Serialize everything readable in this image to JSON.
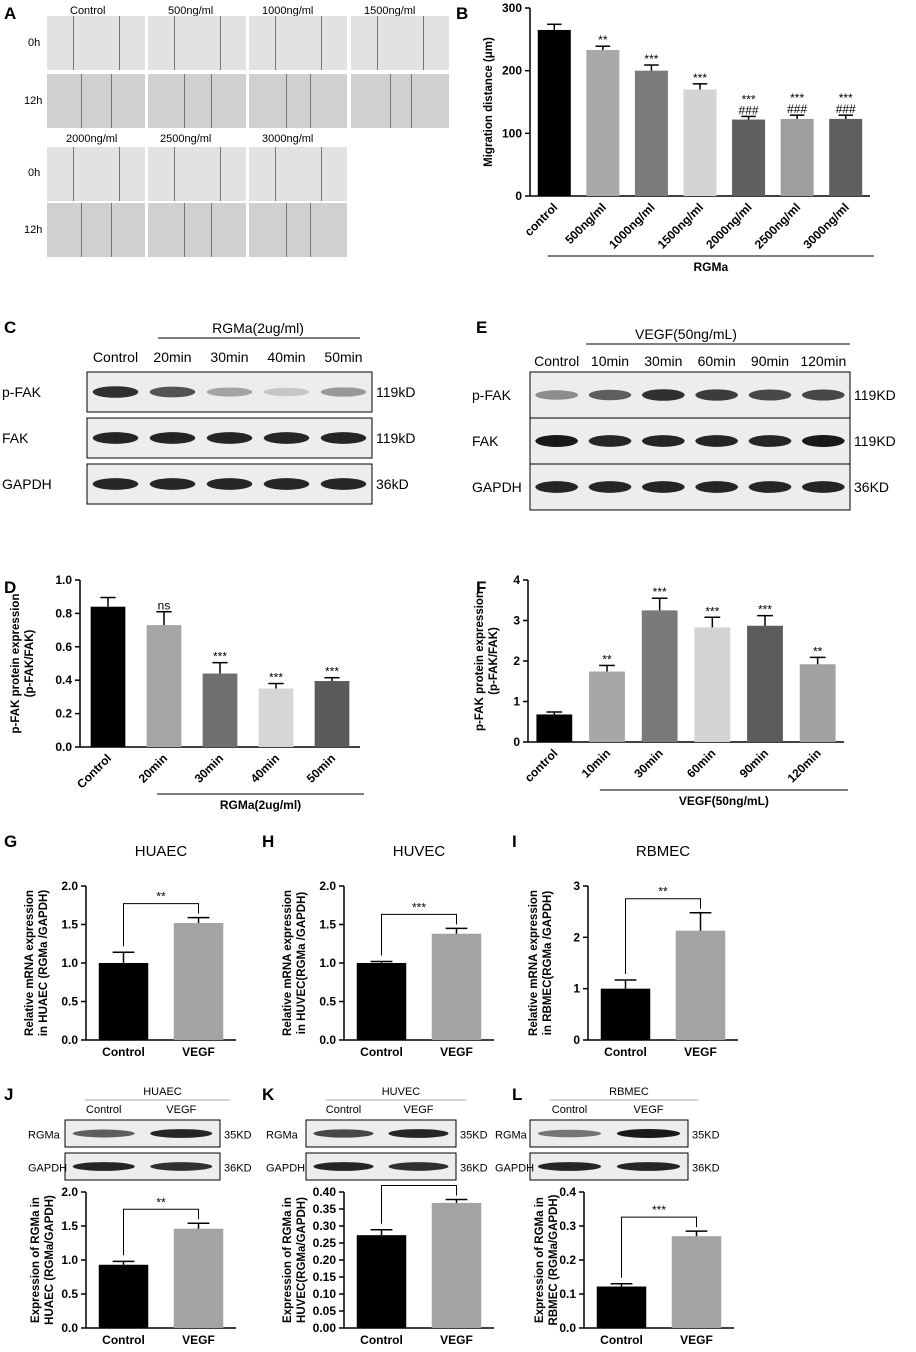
{
  "panel_letters": [
    "A",
    "B",
    "C",
    "D",
    "E",
    "F",
    "G",
    "H",
    "I",
    "J",
    "K",
    "L"
  ],
  "panel_a": {
    "row1_headers": [
      "Control",
      "500ng/ml",
      "1000ng/ml",
      "1500ng/ml"
    ],
    "row2_headers": [
      "2000ng/ml",
      "2500ng/ml",
      "3000ng/ml"
    ],
    "time_labels": [
      "0h",
      "12h"
    ]
  },
  "blot_c": {
    "group_label": "RGMa(2ug/ml)",
    "lanes": [
      "Control",
      "20min",
      "30min",
      "40min",
      "50min"
    ],
    "rows": [
      {
        "name": "p-FAK",
        "kd": "119kD",
        "intensity": [
          0.9,
          0.75,
          0.4,
          0.25,
          0.45
        ]
      },
      {
        "name": "FAK",
        "kd": "119kD",
        "intensity": [
          0.95,
          0.95,
          0.95,
          0.95,
          0.95
        ]
      },
      {
        "name": "GAPDH",
        "kd": "36kD",
        "intensity": [
          0.95,
          0.95,
          0.95,
          0.95,
          0.95
        ]
      }
    ]
  },
  "blot_e": {
    "group_label": "VEGF(50ng/mL)",
    "lanes": [
      "Control",
      "10min",
      "30min",
      "60min",
      "90min",
      "120min"
    ],
    "rows": [
      {
        "name": "p-FAK",
        "kd": "119KD",
        "intensity": [
          0.5,
          0.7,
          0.9,
          0.85,
          0.8,
          0.8
        ]
      },
      {
        "name": "FAK",
        "kd": "119KD",
        "intensity": [
          1,
          0.95,
          0.95,
          0.95,
          0.95,
          1
        ]
      },
      {
        "name": "GAPDH",
        "kd": "36KD",
        "intensity": [
          0.95,
          0.95,
          0.95,
          0.95,
          0.95,
          0.95
        ]
      }
    ]
  },
  "blot_j": {
    "title": "HUAEC",
    "lanes": [
      "Control",
      "VEGF"
    ],
    "rows": [
      {
        "name": "RGMa",
        "kd": "35KD",
        "intensity": [
          0.7,
          0.95
        ]
      },
      {
        "name": "GAPDH",
        "kd": "36KD",
        "intensity": [
          0.95,
          0.9
        ]
      }
    ]
  },
  "blot_k": {
    "title": "HUVEC",
    "lanes": [
      "Control",
      "VEGF"
    ],
    "rows": [
      {
        "name": "RGMa",
        "kd": "35KD",
        "intensity": [
          0.8,
          0.95
        ]
      },
      {
        "name": "GAPDH",
        "kd": "36KD",
        "intensity": [
          0.95,
          0.9
        ]
      }
    ]
  },
  "blot_l": {
    "title": "RBMEC",
    "lanes": [
      "Control",
      "VEGF"
    ],
    "rows": [
      {
        "name": "RGMa",
        "kd": "35KD",
        "intensity": [
          0.6,
          1
        ]
      },
      {
        "name": "GAPDH",
        "kd": "36KD",
        "intensity": [
          0.95,
          0.95
        ]
      }
    ]
  },
  "chart_data": [
    {
      "id": "B",
      "type": "bar",
      "categories": [
        "control",
        "500ng/ml",
        "1000ng/ml",
        "1500ng/ml",
        "2000ng/ml",
        "2500ng/ml",
        "3000ng/ml"
      ],
      "values": [
        265,
        233,
        200,
        170,
        122,
        123,
        123
      ],
      "errors": [
        9,
        6,
        9,
        9,
        5,
        6,
        6
      ],
      "colors": [
        "#000000",
        "#a9a9a9",
        "#7b7b7b",
        "#d4d4d4",
        "#5f5f5f",
        "#9e9e9e",
        "#5e5e5e"
      ],
      "annotations": [
        "",
        "**",
        "***",
        "***",
        "***\n###",
        "***\n###",
        "***\n###"
      ],
      "ylabel": "Migration distance (μm)",
      "ylim": [
        0,
        300
      ],
      "yticks": [
        0,
        100,
        200,
        300
      ],
      "group_label": "RGMa"
    },
    {
      "id": "D",
      "type": "bar",
      "categories": [
        "Control",
        "20min",
        "30min",
        "40min",
        "50min"
      ],
      "values": [
        0.84,
        0.73,
        0.44,
        0.35,
        0.395
      ],
      "errors": [
        0.055,
        0.08,
        0.065,
        0.03,
        0.02
      ],
      "colors": [
        "#000000",
        "#a6a6a6",
        "#6f6f6f",
        "#d6d6d6",
        "#5a5a5a"
      ],
      "annotations": [
        "",
        "ns",
        "***",
        "***",
        "***"
      ],
      "ylabel": "p-FAK protein expression\n(p-FAK/FAK)",
      "ylim": [
        0,
        1.0
      ],
      "yticks": [
        "0.0",
        "0.2",
        "0.4",
        "0.6",
        "0.8",
        "1.0"
      ],
      "group_label": "RGMa(2ug/ml)"
    },
    {
      "id": "F",
      "type": "bar",
      "categories": [
        "control",
        "10min",
        "30min",
        "60min",
        "90min",
        "120min"
      ],
      "values": [
        0.68,
        1.74,
        3.25,
        2.83,
        2.87,
        1.92
      ],
      "errors": [
        0.06,
        0.15,
        0.3,
        0.25,
        0.25,
        0.17
      ],
      "colors": [
        "#000000",
        "#a7a7a7",
        "#7a7a7a",
        "#d4d4d4",
        "#5c5c5c",
        "#a1a1a4"
      ],
      "annotations": [
        "",
        "**",
        "***",
        "***",
        "***",
        "**"
      ],
      "ylabel": "p-FAK protein expression\n(p-FAK/FAK)",
      "ylim": [
        0,
        4
      ],
      "yticks": [
        "0",
        "1",
        "2",
        "3",
        "4"
      ],
      "group_label": "VEGF(50ng/mL)"
    },
    {
      "id": "G",
      "type": "bar",
      "title": "HUAEC",
      "categories": [
        "Control",
        "VEGF"
      ],
      "values": [
        1.0,
        1.52
      ],
      "errors": [
        0.14,
        0.07
      ],
      "colors": [
        "#000000",
        "#a3a3a3"
      ],
      "significance": "**",
      "ylabel": "Relative mRNA expression\nin HUAEC (RGMa /GAPDH)",
      "ylim": [
        0,
        2.0
      ],
      "yticks": [
        "0.0",
        "0.5",
        "1.0",
        "1.5",
        "2.0"
      ]
    },
    {
      "id": "H",
      "type": "bar",
      "title": "HUVEC",
      "categories": [
        "Control",
        "VEGF"
      ],
      "values": [
        1.0,
        1.38
      ],
      "errors": [
        0.02,
        0.07
      ],
      "colors": [
        "#000000",
        "#a3a3a3"
      ],
      "significance": "***",
      "ylabel": "Relative mRNA expression\nin HUVEC(RGMa /GAPDH)",
      "ylim": [
        0,
        2.0
      ],
      "yticks": [
        "0.0",
        "0.5",
        "1.0",
        "1.5",
        "2.0"
      ]
    },
    {
      "id": "I",
      "type": "bar",
      "title": "RBMEC",
      "categories": [
        "Control",
        "VEGF"
      ],
      "values": [
        1.0,
        2.13
      ],
      "errors": [
        0.17,
        0.35
      ],
      "colors": [
        "#000000",
        "#a3a3a3"
      ],
      "significance": "**",
      "ylabel": "Relative mRNA expression\nin RBMEC(RGMa /GAPDH)",
      "ylim": [
        0,
        3
      ],
      "yticks": [
        "0",
        "1",
        "2",
        "3"
      ]
    },
    {
      "id": "J",
      "type": "bar",
      "categories": [
        "Control",
        "VEGF"
      ],
      "values": [
        0.93,
        1.46
      ],
      "errors": [
        0.05,
        0.08
      ],
      "colors": [
        "#000000",
        "#a3a3a3"
      ],
      "significance": "**",
      "ylabel": "Expression of RGMa in\nHUAEC (RGMa/GAPDH)",
      "ylim": [
        0,
        2.0
      ],
      "yticks": [
        "0.0",
        "0.5",
        "1.0",
        "1.5",
        "2.0"
      ]
    },
    {
      "id": "K",
      "type": "bar",
      "categories": [
        "Control",
        "VEGF"
      ],
      "values": [
        0.273,
        0.368
      ],
      "errors": [
        0.016,
        0.01
      ],
      "colors": [
        "#000000",
        "#a3a3a3"
      ],
      "significance": "**",
      "ylabel": "Expression of RGMa in\nHUVEC(RGMa/GAPDH)",
      "ylim": [
        0,
        0.4
      ],
      "yticks": [
        "0.00",
        "0.05",
        "0.10",
        "0.15",
        "0.20",
        "0.25",
        "0.30",
        "0.35",
        "0.40"
      ]
    },
    {
      "id": "L",
      "type": "bar",
      "categories": [
        "Control",
        "VEGF"
      ],
      "values": [
        0.122,
        0.27
      ],
      "errors": [
        0.008,
        0.015
      ],
      "colors": [
        "#000000",
        "#a3a3a3"
      ],
      "significance": "***",
      "ylabel": "Expression of RGMa in\nRBMEC (RGMa/GAPDH)",
      "ylim": [
        0,
        0.4
      ],
      "yticks": [
        "0.0",
        "0.1",
        "0.2",
        "0.3",
        "0.4"
      ]
    }
  ]
}
